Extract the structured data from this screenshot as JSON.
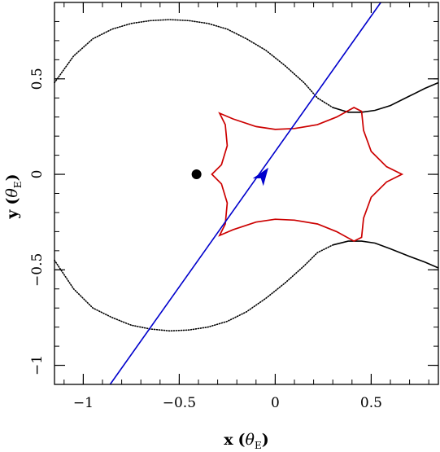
{
  "chart_data": {
    "type": "line",
    "title": "",
    "xlabel": {
      "var": "x",
      "open": "(",
      "theta": "θ",
      "sub": "E",
      "close": ")"
    },
    "ylabel": {
      "var": "y",
      "open": "(",
      "theta": "θ",
      "sub": "E",
      "close": ")"
    },
    "xlim": [
      -1.15,
      0.85
    ],
    "ylim": [
      -1.1,
      0.9
    ],
    "x_ticks": [
      {
        "value": -1,
        "label": "−1"
      },
      {
        "value": -0.5,
        "label": "−0.5"
      },
      {
        "value": 0,
        "label": "0"
      },
      {
        "value": 0.5,
        "label": "0.5"
      }
    ],
    "y_ticks": [
      {
        "value": -1,
        "label": "−1"
      },
      {
        "value": -0.5,
        "label": "−0.5"
      },
      {
        "value": 0,
        "label": "0"
      },
      {
        "value": 0.5,
        "label": "0.5"
      }
    ],
    "minor_step": 0.1,
    "grid": false,
    "colors": {
      "critical_curve": "#000000",
      "caustic": "#cc0000",
      "trajectory": "#0000cc",
      "lens": "#000000"
    },
    "series": [
      {
        "role": "critical-curve-upper",
        "style": "dotted-to-solid",
        "points": [
          [
            -1.15,
            0.48
          ],
          [
            -1.05,
            0.62
          ],
          [
            -0.95,
            0.71
          ],
          [
            -0.85,
            0.76
          ],
          [
            -0.75,
            0.79
          ],
          [
            -0.65,
            0.805
          ],
          [
            -0.55,
            0.81
          ],
          [
            -0.45,
            0.805
          ],
          [
            -0.35,
            0.79
          ],
          [
            -0.25,
            0.76
          ],
          [
            -0.15,
            0.71
          ],
          [
            -0.05,
            0.65
          ],
          [
            0.05,
            0.57
          ],
          [
            0.15,
            0.48
          ],
          [
            0.22,
            0.4
          ],
          [
            0.3,
            0.35
          ],
          [
            0.38,
            0.325
          ],
          [
            0.45,
            0.325
          ],
          [
            0.52,
            0.335
          ],
          [
            0.6,
            0.36
          ],
          [
            0.7,
            0.41
          ],
          [
            0.78,
            0.45
          ],
          [
            0.85,
            0.48
          ]
        ]
      },
      {
        "role": "critical-curve-lower",
        "style": "dotted-to-solid",
        "points": [
          [
            -1.15,
            -0.45
          ],
          [
            -1.05,
            -0.6
          ],
          [
            -0.95,
            -0.7
          ],
          [
            -0.85,
            -0.75
          ],
          [
            -0.75,
            -0.79
          ],
          [
            -0.65,
            -0.81
          ],
          [
            -0.55,
            -0.82
          ],
          [
            -0.45,
            -0.815
          ],
          [
            -0.35,
            -0.8
          ],
          [
            -0.25,
            -0.77
          ],
          [
            -0.15,
            -0.72
          ],
          [
            -0.05,
            -0.65
          ],
          [
            0.05,
            -0.57
          ],
          [
            0.15,
            -0.48
          ],
          [
            0.22,
            -0.41
          ],
          [
            0.3,
            -0.37
          ],
          [
            0.38,
            -0.35
          ],
          [
            0.45,
            -0.35
          ],
          [
            0.52,
            -0.36
          ],
          [
            0.6,
            -0.39
          ],
          [
            0.7,
            -0.43
          ],
          [
            0.78,
            -0.46
          ],
          [
            0.85,
            -0.49
          ]
        ]
      },
      {
        "role": "caustic",
        "style": "solid",
        "points": [
          [
            -0.33,
            0.0
          ],
          [
            -0.28,
            0.05
          ],
          [
            -0.25,
            0.15
          ],
          [
            -0.26,
            0.26
          ],
          [
            -0.29,
            0.32
          ],
          [
            -0.22,
            0.29
          ],
          [
            -0.1,
            0.25
          ],
          [
            0.0,
            0.235
          ],
          [
            0.1,
            0.24
          ],
          [
            0.22,
            0.26
          ],
          [
            0.32,
            0.3
          ],
          [
            0.41,
            0.35
          ],
          [
            0.45,
            0.33
          ],
          [
            0.46,
            0.23
          ],
          [
            0.5,
            0.12
          ],
          [
            0.58,
            0.04
          ],
          [
            0.66,
            0.0
          ],
          [
            0.58,
            -0.04
          ],
          [
            0.5,
            -0.12
          ],
          [
            0.46,
            -0.23
          ],
          [
            0.45,
            -0.33
          ],
          [
            0.41,
            -0.35
          ],
          [
            0.32,
            -0.3
          ],
          [
            0.22,
            -0.26
          ],
          [
            0.1,
            -0.24
          ],
          [
            0.0,
            -0.235
          ],
          [
            -0.1,
            -0.25
          ],
          [
            -0.22,
            -0.29
          ],
          [
            -0.29,
            -0.32
          ],
          [
            -0.26,
            -0.26
          ],
          [
            -0.25,
            -0.15
          ],
          [
            -0.28,
            -0.05
          ],
          [
            -0.33,
            0.0
          ]
        ]
      },
      {
        "role": "source-trajectory",
        "style": "solid",
        "points": [
          [
            -0.86,
            -1.1
          ],
          [
            0.55,
            0.9
          ]
        ],
        "arrow_at": [
          -0.06,
          0.0
        ]
      }
    ],
    "lens_position": [
      -0.41,
      0.0
    ]
  }
}
